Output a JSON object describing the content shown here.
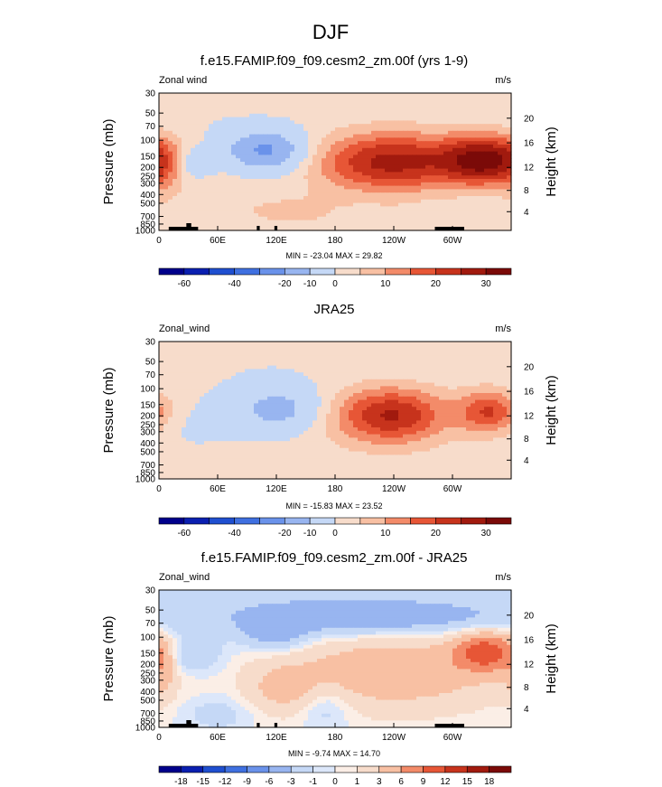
{
  "figure_title": "DJF",
  "colors": {
    "ramp_a": [
      "#00008b",
      "#0a1fb0",
      "#1f4fd0",
      "#3f70e0",
      "#6a92ea",
      "#98b5f0",
      "#c5d8f6",
      "#f7dccb",
      "#f8c0a3",
      "#f38b69",
      "#e75636",
      "#c7331c",
      "#a11a0e",
      "#7b0a08"
    ],
    "ramp_b": [
      "#00008b",
      "#0a1fb0",
      "#1f4fd0",
      "#3f70e0",
      "#6a92ea",
      "#98b5f0",
      "#c5d8f6",
      "#dce7fa",
      "#fbeee6",
      "#f7dccb",
      "#f8c0a3",
      "#f38b69",
      "#e75636",
      "#c7331c",
      "#a11a0e",
      "#7b0a08"
    ]
  },
  "panels": [
    {
      "title": "f.e15.FAMIP.f09_f09.cesm2_zm.00f (yrs 1-9)",
      "left_label": "Zonal wind",
      "units": "m/s",
      "minmax": "MIN = -23.04  MAX = 29.82",
      "ylabel": "Pressure (mb)",
      "y2label": "Height (km)",
      "cb_labels": [
        "-60",
        "-40",
        "-20",
        "-10",
        "0",
        "10",
        "20",
        "30"
      ]
    },
    {
      "title": "JRA25",
      "left_label": "Zonal_wind",
      "units": "m/s",
      "minmax": "MIN = -15.83  MAX = 23.52",
      "ylabel": "Pressure (mb)",
      "y2label": "Height (km)",
      "cb_labels": [
        "-60",
        "-40",
        "-20",
        "-10",
        "0",
        "10",
        "20",
        "30"
      ]
    },
    {
      "title": "f.e15.FAMIP.f09_f09.cesm2_zm.00f - JRA25",
      "left_label": "Zonal_wind",
      "units": "m/s",
      "minmax": "MIN = -9.74  MAX = 14.70",
      "ylabel": "Pressure (mb)",
      "y2label": "Height (km)",
      "cb_labels": [
        "-18",
        "-15",
        "-12",
        "-9",
        "-6",
        "-3",
        "-1",
        "0",
        "1",
        "3",
        "6",
        "9",
        "12",
        "15",
        "18"
      ]
    }
  ],
  "chart_data": [
    {
      "type": "heatmap",
      "title": "f.e15.FAMIP.f09_f09.cesm2_zm.00f (yrs 1-9)",
      "variable": "Zonal wind",
      "units": "m/s",
      "x_ticks": [
        "0",
        "60E",
        "120E",
        "180",
        "120W",
        "60W"
      ],
      "x_tick_lon": [
        0,
        60,
        120,
        180,
        240,
        300
      ],
      "xlim": [
        0,
        360
      ],
      "y_ticks": [
        "30",
        "50",
        "70",
        "100",
        "150",
        "200",
        "250",
        "300",
        "400",
        "500",
        "700",
        "850",
        "1000"
      ],
      "y_tick_p": [
        30,
        50,
        70,
        100,
        150,
        200,
        250,
        300,
        400,
        500,
        700,
        850,
        1000
      ],
      "ylim": [
        1000,
        30
      ],
      "yscale": "log",
      "y2_ticks": [
        "20",
        "16",
        "12",
        "8",
        "4"
      ],
      "levels": [
        -70,
        -60,
        -50,
        -40,
        -30,
        -20,
        -10,
        0,
        5,
        10,
        15,
        20,
        25,
        30,
        35
      ],
      "contour_lines": false,
      "blobs": [
        {
          "lon": 237,
          "p": 175,
          "slon": 55,
          "slp": 0.55,
          "amp": 27
        },
        {
          "lon": 337,
          "p": 165,
          "slon": 32,
          "slp": 0.45,
          "amp": 29.5
        },
        {
          "lon": 110,
          "p": 130,
          "slon": 28,
          "slp": 0.35,
          "amp": -23
        },
        {
          "lon": 35,
          "p": 180,
          "slon": 14,
          "slp": 0.28,
          "amp": -11
        },
        {
          "lon": 135,
          "p": 640,
          "slon": 45,
          "slp": 0.35,
          "amp": 6
        },
        {
          "lon": 60,
          "p": 380,
          "slon": 30,
          "slp": 0.45,
          "amp": 3
        },
        {
          "lon": 250,
          "p": 760,
          "slon": 25,
          "slp": 0.25,
          "amp": 3
        },
        {
          "lon": 5,
          "p": 330,
          "slon": 10,
          "slp": 0.6,
          "amp": 4
        },
        {
          "lon": 190,
          "p": 35,
          "slon": 120,
          "slp": 0.4,
          "amp": 1.5
        }
      ],
      "min": -23.04,
      "max": 29.82
    },
    {
      "type": "heatmap",
      "title": "JRA25",
      "variable": "Zonal_wind",
      "units": "m/s",
      "x_ticks": [
        "0",
        "60E",
        "120E",
        "180",
        "120W",
        "60W"
      ],
      "x_tick_lon": [
        0,
        60,
        120,
        180,
        240,
        300
      ],
      "xlim": [
        0,
        360
      ],
      "y_ticks": [
        "30",
        "50",
        "70",
        "100",
        "150",
        "200",
        "250",
        "300",
        "400",
        "500",
        "700",
        "850",
        "1000"
      ],
      "y_tick_p": [
        30,
        50,
        70,
        100,
        150,
        200,
        250,
        300,
        400,
        500,
        700,
        850,
        1000
      ],
      "ylim": [
        1000,
        30
      ],
      "yscale": "log",
      "y2_ticks": [
        "20",
        "16",
        "12",
        "8",
        "4"
      ],
      "levels": [
        -70,
        -60,
        -50,
        -40,
        -30,
        -20,
        -10,
        0,
        5,
        10,
        15,
        20,
        25,
        30,
        35
      ],
      "contour_lines": false,
      "blobs": [
        {
          "lon": 237,
          "p": 195,
          "slon": 40,
          "slp": 0.5,
          "amp": 23.5
        },
        {
          "lon": 338,
          "p": 180,
          "slon": 22,
          "slp": 0.4,
          "amp": 19
        },
        {
          "lon": 122,
          "p": 170,
          "slon": 30,
          "slp": 0.4,
          "amp": -15.8
        },
        {
          "lon": 200,
          "p": 300,
          "slon": 140,
          "slp": 0.9,
          "amp": 2.5
        },
        {
          "lon": 40,
          "p": 250,
          "slon": 40,
          "slp": 0.4,
          "amp": -2.5
        }
      ],
      "min": -15.83,
      "max": 23.52
    },
    {
      "type": "heatmap",
      "title": "f.e15.FAMIP.f09_f09.cesm2_zm.00f - JRA25",
      "variable": "Zonal_wind",
      "units": "m/s",
      "x_ticks": [
        "0",
        "60E",
        "120E",
        "180",
        "120W",
        "60W"
      ],
      "x_tick_lon": [
        0,
        60,
        120,
        180,
        240,
        300
      ],
      "xlim": [
        0,
        360
      ],
      "y_ticks": [
        "30",
        "50",
        "70",
        "100",
        "150",
        "200",
        "250",
        "300",
        "400",
        "500",
        "700",
        "850",
        "1000"
      ],
      "y_tick_p": [
        30,
        50,
        70,
        100,
        150,
        200,
        250,
        300,
        400,
        500,
        700,
        850,
        1000
      ],
      "ylim": [
        1000,
        30
      ],
      "yscale": "log",
      "y2_ticks": [
        "20",
        "16",
        "12",
        "8",
        "4"
      ],
      "levels": [
        -21,
        -18,
        -15,
        -12,
        -9,
        -6,
        -3,
        -1,
        0,
        1,
        3,
        6,
        9,
        12,
        15,
        18,
        21
      ],
      "contour_lines": true,
      "blobs": [
        {
          "lon": 215,
          "p": 62,
          "slon": 110,
          "slp": 0.32,
          "amp": -5
        },
        {
          "lon": 120,
          "p": 95,
          "slon": 24,
          "slp": 0.3,
          "amp": -4
        },
        {
          "lon": 30,
          "p": 150,
          "slon": 22,
          "slp": 0.35,
          "amp": -4
        },
        {
          "lon": 240,
          "p": 240,
          "slon": 80,
          "slp": 0.7,
          "amp": 5
        },
        {
          "lon": 336,
          "p": 145,
          "slon": 24,
          "slp": 0.35,
          "amp": 10
        },
        {
          "lon": 125,
          "p": 380,
          "slon": 25,
          "slp": 0.45,
          "amp": 3
        },
        {
          "lon": 5,
          "p": 250,
          "slon": 8,
          "slp": 0.5,
          "amp": 3
        },
        {
          "lon": 170,
          "p": 600,
          "slon": 18,
          "slp": 0.4,
          "amp": -2.5
        },
        {
          "lon": 60,
          "p": 700,
          "slon": 25,
          "slp": 0.3,
          "amp": -2
        },
        {
          "lon": 180,
          "p": 35,
          "slon": 180,
          "slp": 0.5,
          "amp": -1.5
        }
      ],
      "min": -9.74,
      "max": 14.7
    }
  ]
}
